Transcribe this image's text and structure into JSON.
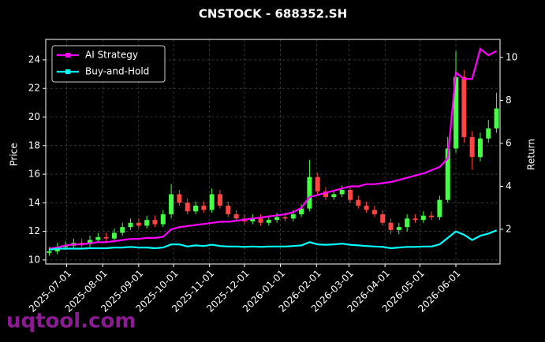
{
  "chart_data": {
    "type": "candlestick",
    "title": "CNSTOCK - 688352.SH",
    "ylabel": "Price",
    "y2label": "Return",
    "watermark": "uqtool.com",
    "x": [
      "2025-06-16",
      "2025-06-23",
      "2025-06-30",
      "2025-07-07",
      "2025-07-14",
      "2025-07-21",
      "2025-07-28",
      "2025-08-04",
      "2025-08-11",
      "2025-08-18",
      "2025-08-25",
      "2025-09-01",
      "2025-09-08",
      "2025-09-15",
      "2025-09-22",
      "2025-09-29",
      "2025-10-06",
      "2025-10-13",
      "2025-10-20",
      "2025-10-27",
      "2025-11-03",
      "2025-11-10",
      "2025-11-17",
      "2025-11-24",
      "2025-12-01",
      "2025-12-08",
      "2025-12-15",
      "2025-12-22",
      "2025-12-29",
      "2026-01-05",
      "2026-01-12",
      "2026-01-19",
      "2026-01-26",
      "2026-02-02",
      "2026-02-09",
      "2026-02-16",
      "2026-02-23",
      "2026-03-02",
      "2026-03-09",
      "2026-03-16",
      "2026-03-23",
      "2026-03-30",
      "2026-04-06",
      "2026-04-13",
      "2026-04-20",
      "2026-04-27",
      "2026-05-04",
      "2026-05-11",
      "2026-05-18",
      "2026-05-25",
      "2026-06-01",
      "2026-06-08",
      "2026-06-15",
      "2026-06-22",
      "2026-06-29",
      "2026-07-06"
    ],
    "open": [
      10.5,
      10.6,
      10.9,
      11.0,
      11.2,
      11.1,
      11.4,
      11.6,
      11.5,
      11.9,
      12.3,
      12.6,
      12.4,
      12.8,
      12.5,
      13.2,
      14.6,
      14.0,
      13.4,
      13.8,
      13.5,
      14.6,
      13.8,
      13.2,
      12.9,
      12.7,
      12.9,
      12.6,
      12.8,
      13.0,
      12.9,
      13.2,
      13.6,
      15.8,
      14.8,
      14.4,
      14.6,
      14.9,
      14.2,
      13.8,
      13.5,
      13.2,
      12.6,
      12.1,
      12.3,
      12.9,
      12.8,
      13.1,
      13.0,
      14.2,
      17.8,
      22.8,
      18.6,
      17.2,
      18.5,
      19.2
    ],
    "high": [
      10.9,
      11.2,
      11.3,
      11.5,
      11.5,
      11.7,
      11.9,
      11.9,
      12.2,
      12.6,
      12.9,
      12.9,
      13.1,
      13.1,
      13.5,
      15.3,
      14.9,
      14.3,
      14.1,
      14.1,
      15.0,
      14.9,
      14.1,
      13.5,
      13.2,
      13.2,
      13.2,
      13.1,
      13.3,
      13.3,
      13.5,
      13.9,
      17.0,
      16.1,
      15.1,
      14.9,
      15.2,
      15.2,
      14.5,
      14.1,
      13.8,
      13.5,
      12.9,
      12.6,
      13.2,
      13.2,
      13.4,
      13.4,
      14.5,
      18.6,
      24.6,
      23.3,
      19.0,
      18.9,
      19.8,
      21.7
    ],
    "low": [
      10.3,
      10.4,
      10.7,
      10.8,
      10.9,
      10.9,
      11.2,
      11.3,
      11.3,
      11.7,
      12.1,
      12.2,
      12.2,
      12.3,
      12.3,
      12.9,
      13.8,
      13.2,
      13.2,
      13.3,
      13.3,
      13.6,
      13.0,
      12.7,
      12.5,
      12.5,
      12.4,
      12.4,
      12.6,
      12.7,
      12.7,
      13.0,
      13.4,
      14.6,
      14.2,
      14.2,
      14.4,
      14.0,
      13.6,
      13.3,
      13.0,
      12.4,
      11.8,
      11.8,
      12.0,
      12.6,
      12.6,
      12.8,
      12.8,
      14.0,
      17.5,
      18.2,
      16.3,
      16.9,
      18.2,
      18.9
    ],
    "close": [
      10.6,
      10.9,
      11.0,
      11.2,
      11.1,
      11.4,
      11.6,
      11.5,
      11.9,
      12.3,
      12.6,
      12.4,
      12.8,
      12.5,
      13.2,
      14.6,
      14.0,
      13.4,
      13.8,
      13.5,
      14.6,
      13.8,
      13.2,
      12.9,
      12.7,
      12.9,
      12.6,
      12.8,
      13.0,
      12.9,
      13.2,
      13.6,
      15.8,
      14.8,
      14.4,
      14.6,
      14.9,
      14.2,
      13.8,
      13.5,
      13.2,
      12.6,
      12.1,
      12.3,
      12.9,
      12.8,
      13.1,
      13.0,
      14.2,
      17.8,
      22.8,
      18.6,
      17.2,
      18.5,
      19.2,
      20.6
    ],
    "up_color": "#44ff44",
    "down_color": "#ff4444",
    "series": [
      {
        "name": "AI Strategy",
        "color": "#ff00ff",
        "axis": "y2",
        "values": [
          1.1,
          1.15,
          1.25,
          1.3,
          1.3,
          1.35,
          1.4,
          1.4,
          1.45,
          1.5,
          1.55,
          1.55,
          1.6,
          1.6,
          1.65,
          2.0,
          2.1,
          2.15,
          2.2,
          2.25,
          2.3,
          2.35,
          2.35,
          2.4,
          2.45,
          2.5,
          2.55,
          2.6,
          2.65,
          2.7,
          2.8,
          3.0,
          3.5,
          3.6,
          3.7,
          3.8,
          3.9,
          4.0,
          4.0,
          4.1,
          4.1,
          4.15,
          4.2,
          4.3,
          4.4,
          4.5,
          4.6,
          4.75,
          4.9,
          5.3,
          9.3,
          9.0,
          9.0,
          10.4,
          10.1,
          10.3
        ]
      },
      {
        "name": "Buy-and-Hold",
        "color": "#00ffff",
        "axis": "y2",
        "values": [
          1.05,
          1.1,
          1.1,
          1.1,
          1.1,
          1.12,
          1.12,
          1.12,
          1.15,
          1.15,
          1.18,
          1.15,
          1.15,
          1.12,
          1.15,
          1.3,
          1.3,
          1.2,
          1.25,
          1.22,
          1.28,
          1.22,
          1.2,
          1.2,
          1.18,
          1.2,
          1.18,
          1.2,
          1.2,
          1.2,
          1.22,
          1.25,
          1.4,
          1.3,
          1.28,
          1.3,
          1.33,
          1.28,
          1.25,
          1.22,
          1.2,
          1.18,
          1.12,
          1.15,
          1.18,
          1.18,
          1.2,
          1.2,
          1.3,
          1.6,
          1.9,
          1.75,
          1.5,
          1.7,
          1.8,
          1.95
        ]
      }
    ],
    "xlim": [
      "2025-06-13",
      "2026-07-09"
    ],
    "xticks": [
      "2025-07-01",
      "2025-08-01",
      "2025-09-01",
      "2025-10-01",
      "2025-11-01",
      "2025-12-01",
      "2026-01-01",
      "2026-02-01",
      "2026-03-01",
      "2026-04-01",
      "2026-05-01",
      "2026-06-01"
    ],
    "ylim": [
      9.72,
      25.43
    ],
    "yticks": [
      10,
      12,
      14,
      16,
      18,
      20,
      22,
      24
    ],
    "y2lim": [
      0.385,
      10.84
    ],
    "y2ticks": [
      2,
      4,
      6,
      8,
      10
    ],
    "grid": true,
    "legend": "upper left"
  }
}
